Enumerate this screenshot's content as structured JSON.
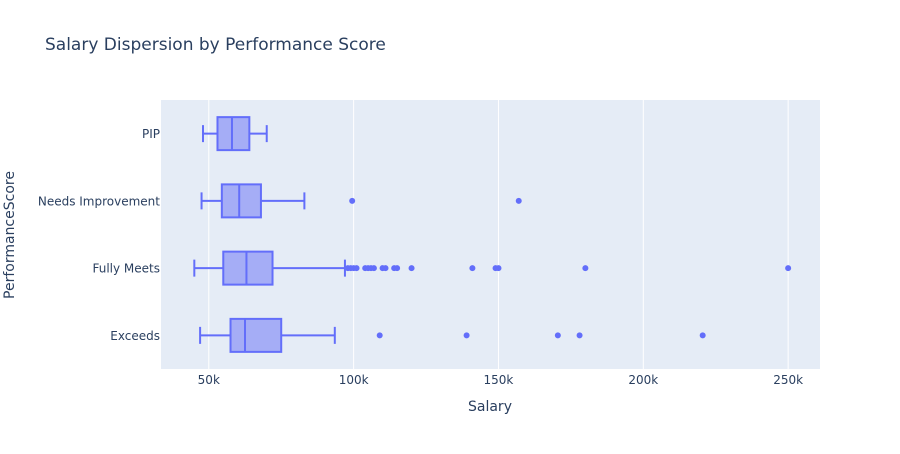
{
  "chart_data": {
    "type": "box",
    "orientation": "horizontal",
    "title": "Salary Dispersion by Performance Score",
    "xlabel": "Salary",
    "ylabel": "PerformanceScore",
    "xlim": [
      33500,
      261000
    ],
    "xticks": [
      {
        "value": 50000,
        "label": "50k"
      },
      {
        "value": 100000,
        "label": "100k"
      },
      {
        "value": 150000,
        "label": "150k"
      },
      {
        "value": 200000,
        "label": "200k"
      },
      {
        "value": 250000,
        "label": "250k"
      }
    ],
    "grid": true,
    "colors": {
      "box_fill": "#a5adf6",
      "box_line": "#636efa",
      "plot_bg": "#e5ecf6",
      "grid": "#ffffff",
      "text": "#2a3f5f"
    },
    "categories": [
      "PIP",
      "Needs Improvement",
      "Fully Meets",
      "Exceeds"
    ],
    "boxes": [
      {
        "category": "PIP",
        "min": 48000,
        "q1": 53000,
        "median": 58000,
        "q3": 64000,
        "max": 70000,
        "outliers": []
      },
      {
        "category": "Needs Improvement",
        "min": 47500,
        "q1": 54500,
        "median": 60500,
        "q3": 68000,
        "max": 83000,
        "outliers": [
          99500,
          157000
        ]
      },
      {
        "category": "Fully Meets",
        "min": 45000,
        "q1": 55000,
        "median": 63000,
        "q3": 72000,
        "max": 97000,
        "outliers": [
          98000,
          99000,
          100000,
          101000,
          104000,
          105000,
          106000,
          107000,
          110000,
          111000,
          114000,
          115000,
          120000,
          141000,
          149000,
          150000,
          180000,
          250000
        ]
      },
      {
        "category": "Exceeds",
        "min": 47000,
        "q1": 57500,
        "median": 62500,
        "q3": 75000,
        "max": 93500,
        "outliers": [
          109000,
          139000,
          170500,
          178000,
          220500
        ]
      }
    ]
  }
}
